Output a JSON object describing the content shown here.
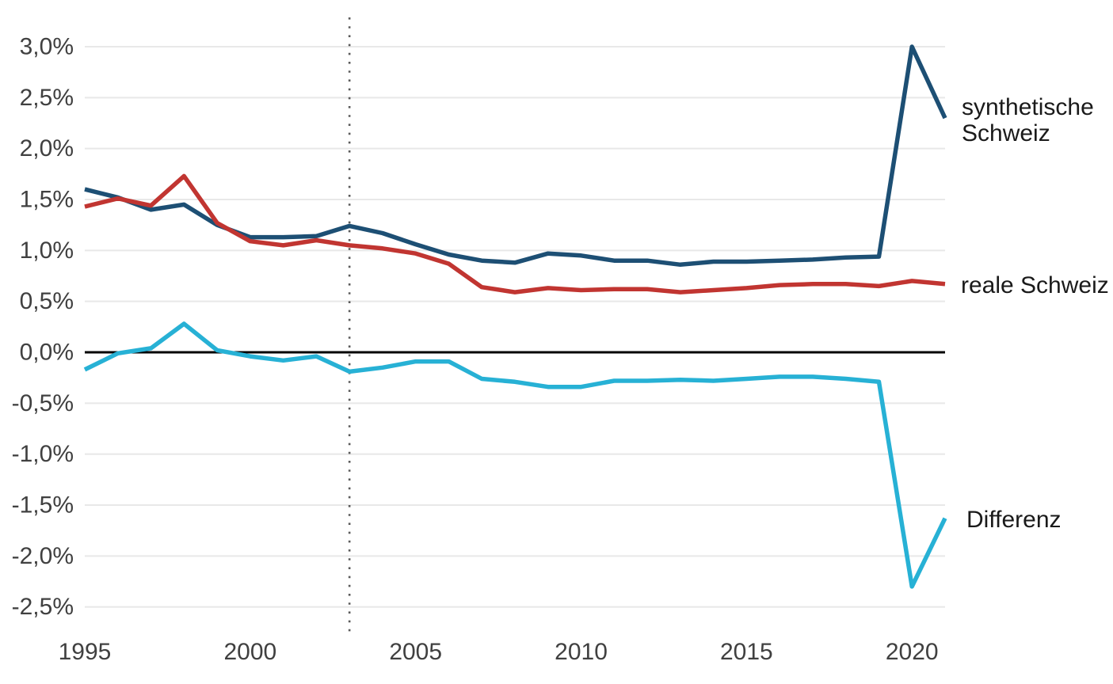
{
  "chart_data": {
    "type": "line",
    "title": "",
    "xlabel": "",
    "ylabel": "",
    "unit": "%",
    "xlim": [
      1995,
      2021
    ],
    "ylim": [
      -2.5,
      3.0
    ],
    "grid": true,
    "zero_line": true,
    "reference_vline_x": 2003,
    "legend_position": "right-end-of-lines",
    "x": [
      1995,
      1996,
      1997,
      1998,
      1999,
      2000,
      2001,
      2002,
      2003,
      2004,
      2005,
      2006,
      2007,
      2008,
      2009,
      2010,
      2011,
      2012,
      2013,
      2014,
      2015,
      2016,
      2017,
      2018,
      2019,
      2020,
      2021
    ],
    "series": [
      {
        "key": "synthetische",
        "name": "synthetische Schweiz",
        "color": "#1d4f74",
        "values": [
          1.6,
          1.52,
          1.4,
          1.45,
          1.25,
          1.13,
          1.13,
          1.14,
          1.24,
          1.17,
          1.06,
          0.96,
          0.9,
          0.88,
          0.97,
          0.95,
          0.9,
          0.9,
          0.86,
          0.89,
          0.89,
          0.9,
          0.91,
          0.93,
          0.94,
          3.0,
          2.3
        ]
      },
      {
        "key": "reale",
        "name": "reale Schweiz",
        "color": "#c13531",
        "values": [
          1.43,
          1.51,
          1.44,
          1.73,
          1.27,
          1.09,
          1.05,
          1.1,
          1.05,
          1.02,
          0.97,
          0.87,
          0.64,
          0.59,
          0.63,
          0.61,
          0.62,
          0.62,
          0.59,
          0.61,
          0.63,
          0.66,
          0.67,
          0.67,
          0.65,
          0.7,
          0.67
        ]
      },
      {
        "key": "differenz",
        "name": "Differenz",
        "color": "#27b1d5",
        "values": [
          -0.17,
          -0.01,
          0.04,
          0.28,
          0.02,
          -0.04,
          -0.08,
          -0.04,
          -0.19,
          -0.15,
          -0.09,
          -0.09,
          -0.26,
          -0.29,
          -0.34,
          -0.34,
          -0.28,
          -0.28,
          -0.27,
          -0.28,
          -0.26,
          -0.24,
          -0.24,
          -0.26,
          -0.29,
          -2.3,
          -1.63
        ]
      }
    ],
    "y_ticks": [
      {
        "v": 3.0,
        "label": "3,0%"
      },
      {
        "v": 2.5,
        "label": "2,5%"
      },
      {
        "v": 2.0,
        "label": "2,0%"
      },
      {
        "v": 1.5,
        "label": "1,5%"
      },
      {
        "v": 1.0,
        "label": "1,0%"
      },
      {
        "v": 0.5,
        "label": "0,5%"
      },
      {
        "v": 0.0,
        "label": "0,0%"
      },
      {
        "v": -0.5,
        "label": "-0,5%"
      },
      {
        "v": -1.0,
        "label": "-1,0%"
      },
      {
        "v": -1.5,
        "label": "-1,5%"
      },
      {
        "v": -2.0,
        "label": "-2,0%"
      },
      {
        "v": -2.5,
        "label": "-2,5%"
      }
    ],
    "x_ticks": [
      {
        "v": 1995,
        "label": "1995"
      },
      {
        "v": 2000,
        "label": "2000"
      },
      {
        "v": 2005,
        "label": "2005"
      },
      {
        "v": 2010,
        "label": "2010"
      },
      {
        "v": 2015,
        "label": "2015"
      },
      {
        "v": 2020,
        "label": "2020"
      }
    ]
  },
  "colors": {
    "grid": "#e8e8e8",
    "zero_line": "#000000",
    "reference_vline": "#5a5a5a",
    "axis_text": "#404040",
    "label_text": "#1a1a1a",
    "background": "#ffffff"
  }
}
